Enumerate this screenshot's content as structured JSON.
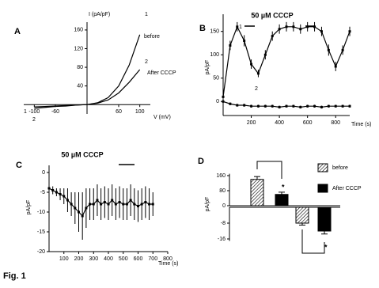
{
  "figure_label": "Fig. 1",
  "chart_data": [
    {
      "type": "line",
      "label": "A",
      "xlabel": "V (mV)",
      "ylabel": "I (pA/pF)",
      "axes_at_zero": true,
      "x": [
        -100,
        -80,
        -60,
        -40,
        -20,
        0,
        20,
        40,
        60,
        80,
        100
      ],
      "series": [
        {
          "name": "before",
          "color": "#000000",
          "values": [
            -8,
            -6,
            -4,
            -3,
            -1,
            0,
            4,
            15,
            40,
            85,
            150
          ]
        },
        {
          "name": "After CCCP",
          "color": "#000000",
          "values": [
            -5,
            -4,
            -3,
            -2,
            -1,
            0,
            3,
            10,
            25,
            48,
            75
          ]
        }
      ],
      "annotations": [
        "1",
        "before",
        "2",
        "After CCCP",
        "1",
        "2"
      ],
      "xlim": [
        -120,
        120
      ],
      "xticks": [
        -100,
        -60,
        60,
        100
      ],
      "ylim": [
        -20,
        170
      ],
      "yticks": [
        40,
        80,
        120,
        160
      ]
    },
    {
      "type": "line",
      "label": "B",
      "title": "50 µM CCCP",
      "xlabel": "Time (s)",
      "ylabel": "pA/pF",
      "x": [
        0,
        50,
        100,
        150,
        200,
        250,
        300,
        350,
        400,
        450,
        500,
        550,
        600,
        650,
        700,
        750,
        800,
        850,
        900
      ],
      "series": [
        {
          "color": "#000000",
          "values": [
            10,
            120,
            160,
            130,
            80,
            60,
            100,
            140,
            155,
            160,
            160,
            155,
            160,
            160,
            150,
            110,
            75,
            110,
            150
          ],
          "errors": [
            5,
            10,
            10,
            12,
            10,
            8,
            10,
            10,
            10,
            10,
            10,
            10,
            10,
            10,
            10,
            12,
            10,
            10,
            10
          ]
        },
        {
          "color": "#000000",
          "values": [
            0,
            -5,
            -8,
            -8,
            -10,
            -10,
            -10,
            -10,
            -12,
            -10,
            -10,
            -12,
            -10,
            -10,
            -12,
            -10,
            -10,
            -10,
            -10
          ],
          "errors": [
            3,
            3,
            3,
            3,
            3,
            3,
            3,
            3,
            3,
            3,
            3,
            3,
            3,
            3,
            3,
            3,
            3,
            3,
            3
          ]
        }
      ],
      "annotations": [
        "1",
        "2"
      ],
      "xlim": [
        0,
        900
      ],
      "xticks": [
        200,
        400,
        600,
        800
      ],
      "ylim": [
        -30,
        180
      ],
      "yticks": [
        0,
        50,
        100,
        150
      ]
    },
    {
      "type": "line",
      "label": "C",
      "title": "50 µM CCCP",
      "xlabel": "Time (s)",
      "ylabel": "pA/pF",
      "x": [
        0,
        25,
        50,
        75,
        100,
        125,
        150,
        175,
        200,
        225,
        250,
        275,
        300,
        325,
        350,
        375,
        400,
        425,
        450,
        475,
        500,
        525,
        550,
        575,
        600,
        625,
        650,
        675,
        700
      ],
      "series": [
        {
          "color": "#000000",
          "values": [
            -4,
            -4.5,
            -5,
            -5.5,
            -6,
            -7,
            -8,
            -9,
            -10,
            -11,
            -9,
            -8,
            -8,
            -7,
            -8,
            -7.5,
            -8,
            -7,
            -8,
            -7.5,
            -8,
            -8,
            -7,
            -8,
            -8.5,
            -8,
            -7.5,
            -8,
            -8
          ],
          "errors": [
            1,
            1,
            1,
            1.5,
            2,
            3,
            3,
            4,
            5,
            6,
            5,
            4,
            4,
            4,
            4,
            4,
            4,
            4,
            4,
            4,
            4,
            4,
            4,
            4,
            4,
            4,
            4,
            4,
            3
          ]
        }
      ],
      "xlim": [
        0,
        800
      ],
      "xticks": [
        100,
        200,
        300,
        400,
        500,
        600,
        700,
        800
      ],
      "ylim": [
        -20,
        1
      ],
      "yticks": [
        0,
        -5,
        -10,
        -15,
        -20
      ]
    },
    {
      "type": "bar",
      "label": "D",
      "ylabel": "pA/pF",
      "legend": "right",
      "series": [
        {
          "name": "before",
          "color": "#000000",
          "hatch": true,
          "values": [
            140
          ],
          "errors": [
            15
          ]
        },
        {
          "name": "After CCCP",
          "color": "#000000",
          "hatch": false,
          "values": [
            60
          ],
          "errors": [
            12
          ]
        }
      ],
      "annotations": [
        "*"
      ],
      "ylim": [
        0,
        170
      ],
      "yticks": [
        0,
        80,
        160
      ]
    },
    {
      "type": "bar",
      "series": [
        {
          "color": "#000000",
          "hatch": true,
          "values": [
            -8
          ],
          "errors": [
            1
          ]
        },
        {
          "color": "#000000",
          "hatch": false,
          "values": [
            -12
          ],
          "errors": [
            1.5
          ]
        }
      ],
      "annotations": [
        "*"
      ],
      "ylim": [
        -17,
        0
      ],
      "yticks": [
        -8,
        -16
      ]
    }
  ]
}
